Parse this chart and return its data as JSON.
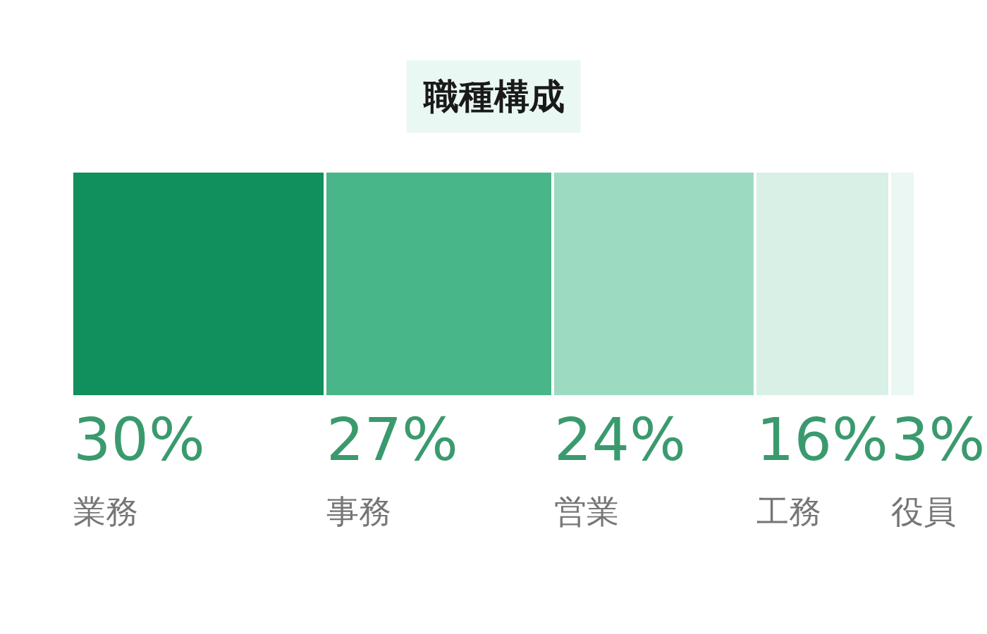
{
  "chart_data": {
    "type": "bar",
    "title": "職種構成",
    "orientation": "horizontal",
    "stacked": true,
    "categories": [
      null
    ],
    "xlim": [
      0,
      100
    ],
    "tick_labels": false,
    "legend": false,
    "series": [
      {
        "name": "業務",
        "color": "#118f5c",
        "values": [
          30
        ],
        "value_labels": [
          "30%"
        ]
      },
      {
        "name": "事務",
        "color": "#48b689",
        "values": [
          27
        ],
        "value_labels": [
          "27%"
        ]
      },
      {
        "name": "営業",
        "color": "#9cdbc2",
        "values": [
          24
        ],
        "value_labels": [
          "24%"
        ]
      },
      {
        "name": "工務",
        "color": "#d8f0e6",
        "values": [
          16
        ],
        "value_labels": [
          "16%"
        ]
      },
      {
        "name": "役員",
        "color": "#eaf7f3",
        "values": [
          3
        ],
        "value_labels": [
          "3%"
        ]
      }
    ]
  }
}
